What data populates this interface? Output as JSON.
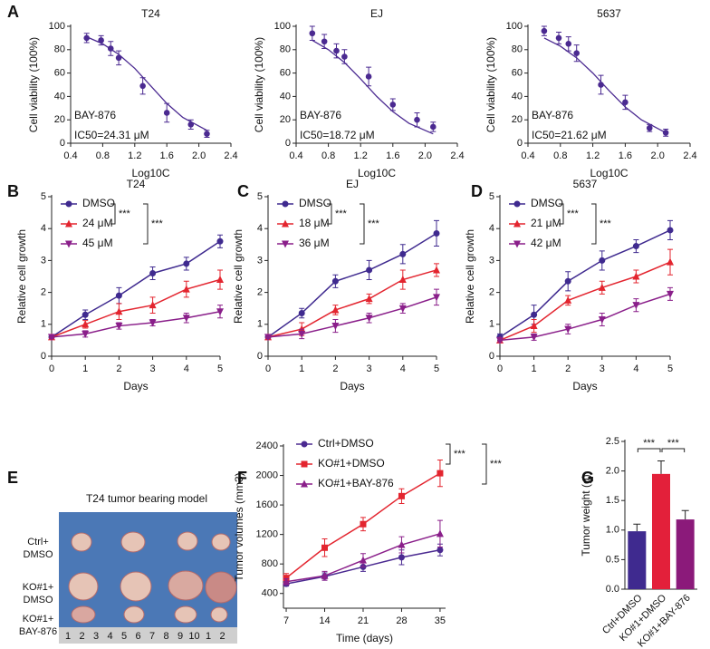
{
  "chart_data": [
    {
      "type": "scatter",
      "panel": "A",
      "title": "T24",
      "x_label": "Log10C",
      "y_label": "Cell viability (100%)",
      "annotations": [
        "BAY-876",
        "IC50=24.31 μM"
      ],
      "color": "#4b2a91",
      "x": [
        0.6,
        0.78,
        0.9,
        1.0,
        1.3,
        1.6,
        1.9,
        2.1
      ],
      "values": [
        90,
        88,
        81,
        73,
        49,
        26,
        16,
        8
      ],
      "errors": [
        4,
        4,
        6,
        6,
        7,
        8,
        4,
        3
      ],
      "fit": {
        "x": [
          0.6,
          0.8,
          1.0,
          1.2,
          1.4,
          1.6,
          1.8,
          2.1
        ],
        "values": [
          91,
          85,
          76,
          64,
          49,
          34,
          22,
          11
        ]
      },
      "xlim": [
        0.4,
        2.4
      ],
      "xticks": [
        0.4,
        0.8,
        1.2,
        1.6,
        {
          "value": 2,
          "label": "2.0"
        },
        2.4
      ],
      "ylim": [
        0,
        100
      ],
      "yticks": [
        0,
        20,
        40,
        60,
        80,
        100
      ]
    },
    {
      "type": "scatter",
      "title": "EJ",
      "x_label": "Log10C",
      "y_label": "Cell viability (100%)",
      "annotations": [
        "BAY-876",
        "IC50=18.72 μM"
      ],
      "color": "#4b2a91",
      "x": [
        0.6,
        0.75,
        0.9,
        1.0,
        1.3,
        1.6,
        1.9,
        2.1
      ],
      "values": [
        94,
        87,
        79,
        74,
        57,
        33,
        20,
        14
      ],
      "errors": [
        6,
        6,
        6,
        6,
        8,
        5,
        6,
        4
      ],
      "fit": {
        "x": [
          0.6,
          0.8,
          1.0,
          1.2,
          1.4,
          1.6,
          1.8,
          2.1
        ],
        "values": [
          88,
          80,
          69,
          55,
          40,
          27,
          17,
          8
        ]
      },
      "xlim": [
        0.4,
        2.4
      ],
      "xticks": [
        0.4,
        0.8,
        1.2,
        1.6,
        {
          "value": 2,
          "label": "2.0"
        },
        2.4
      ],
      "ylim": [
        0,
        100
      ],
      "yticks": [
        0,
        20,
        40,
        60,
        80,
        100
      ]
    },
    {
      "type": "scatter",
      "title": "5637",
      "x_label": "Log10C",
      "y_label": "Cell viability (100%)",
      "annotations": [
        "BAY-876",
        "IC50=21.62 μM"
      ],
      "color": "#4b2a91",
      "x": [
        0.6,
        0.78,
        0.9,
        1.0,
        1.3,
        1.6,
        1.9,
        2.1
      ],
      "values": [
        96,
        90,
        85,
        77,
        50,
        35,
        13,
        9
      ],
      "errors": [
        4,
        5,
        6,
        7,
        8,
        6,
        3,
        3
      ],
      "fit": {
        "x": [
          0.6,
          0.8,
          1.0,
          1.2,
          1.4,
          1.6,
          1.8,
          2.1
        ],
        "values": [
          90,
          83,
          73,
          60,
          45,
          31,
          20,
          9
        ]
      },
      "xlim": [
        0.4,
        2.4
      ],
      "xticks": [
        0.4,
        0.8,
        1.2,
        1.6,
        {
          "value": 2,
          "label": "2.0"
        },
        2.4
      ],
      "ylim": [
        0,
        100
      ],
      "yticks": [
        0,
        20,
        40,
        60,
        80,
        100
      ]
    },
    {
      "type": "line",
      "panel": "B",
      "title": "T24",
      "x_label": "Days",
      "y_label": "Relative cell growth",
      "annotations": [
        "***",
        "***"
      ],
      "x": [
        0,
        1,
        2,
        3,
        4,
        5
      ],
      "xlim": [
        0,
        5
      ],
      "xticks": [
        0,
        1,
        2,
        3,
        4,
        5
      ],
      "ylim": [
        0,
        5
      ],
      "yticks": [
        0,
        1,
        2,
        3,
        4,
        5
      ],
      "series": [
        {
          "name": "DMSO",
          "color": "#3f2a8f",
          "marker": "circle",
          "values": [
            0.6,
            1.3,
            1.9,
            2.6,
            2.9,
            3.6
          ],
          "errors": [
            0.05,
            0.15,
            0.25,
            0.2,
            0.2,
            0.2
          ]
        },
        {
          "name": "24 μM",
          "color": "#e3252f",
          "marker": "triangle-up",
          "values": [
            0.6,
            1.0,
            1.4,
            1.6,
            2.1,
            2.4
          ],
          "errors": [
            0.05,
            0.12,
            0.25,
            0.25,
            0.25,
            0.3
          ]
        },
        {
          "name": "45 μM",
          "color": "#8a1f8a",
          "marker": "triangle-down",
          "values": [
            0.6,
            0.7,
            0.95,
            1.05,
            1.2,
            1.4
          ],
          "errors": [
            0.05,
            0.1,
            0.1,
            0.1,
            0.15,
            0.2
          ]
        }
      ]
    },
    {
      "type": "line",
      "panel": "C",
      "title": "EJ",
      "x_label": "Days",
      "y_label": "Relative cell growth",
      "annotations": [
        "***",
        "***"
      ],
      "x": [
        0,
        1,
        2,
        3,
        4,
        5
      ],
      "xlim": [
        0,
        5
      ],
      "xticks": [
        0,
        1,
        2,
        3,
        4,
        5
      ],
      "ylim": [
        0,
        5
      ],
      "yticks": [
        0,
        1,
        2,
        3,
        4,
        5
      ],
      "series": [
        {
          "name": "DMSO",
          "color": "#3f2a8f",
          "marker": "circle",
          "values": [
            0.6,
            1.35,
            2.35,
            2.7,
            3.2,
            3.85
          ],
          "errors": [
            0.05,
            0.15,
            0.2,
            0.3,
            0.3,
            0.4
          ]
        },
        {
          "name": "18 μM",
          "color": "#e3252f",
          "marker": "triangle-up",
          "values": [
            0.6,
            0.85,
            1.45,
            1.8,
            2.4,
            2.7
          ],
          "errors": [
            0.05,
            0.2,
            0.15,
            0.15,
            0.3,
            0.2
          ]
        },
        {
          "name": "36 μM",
          "color": "#8a1f8a",
          "marker": "triangle-down",
          "values": [
            0.6,
            0.7,
            0.95,
            1.2,
            1.5,
            1.85
          ],
          "errors": [
            0.05,
            0.15,
            0.2,
            0.15,
            0.15,
            0.25
          ]
        }
      ]
    },
    {
      "type": "line",
      "panel": "D",
      "title": "5637",
      "x_label": "Days",
      "y_label": "Relative cell growth",
      "annotations": [
        "***",
        "***"
      ],
      "x": [
        0,
        1,
        2,
        3,
        4,
        5
      ],
      "xlim": [
        0,
        5
      ],
      "xticks": [
        0,
        1,
        2,
        3,
        4,
        5
      ],
      "ylim": [
        0,
        5
      ],
      "yticks": [
        0,
        1,
        2,
        3,
        4,
        5
      ],
      "series": [
        {
          "name": "DMSO",
          "color": "#3f2a8f",
          "marker": "circle",
          "values": [
            0.6,
            1.3,
            2.35,
            3.0,
            3.45,
            3.95
          ],
          "errors": [
            0.1,
            0.3,
            0.3,
            0.3,
            0.2,
            0.3
          ]
        },
        {
          "name": "21 μM",
          "color": "#e3252f",
          "marker": "triangle-up",
          "values": [
            0.5,
            0.95,
            1.75,
            2.15,
            2.5,
            2.95
          ],
          "errors": [
            0.05,
            0.2,
            0.15,
            0.2,
            0.2,
            0.4
          ]
        },
        {
          "name": "42 μM",
          "color": "#8a1f8a",
          "marker": "triangle-down",
          "values": [
            0.5,
            0.6,
            0.85,
            1.15,
            1.6,
            1.95
          ],
          "errors": [
            0.05,
            0.1,
            0.15,
            0.2,
            0.2,
            0.2
          ]
        }
      ]
    },
    {
      "type": "line",
      "panel": "F",
      "x_label": "Time (days)",
      "y_label": "Tumor volumes (mm3)",
      "annotations": [
        "***",
        "***"
      ],
      "x": [
        7,
        14,
        21,
        28,
        35
      ],
      "xlim": [
        6.5,
        36
      ],
      "xticks": [
        7,
        14,
        21,
        28,
        35
      ],
      "ylim": [
        200,
        2400
      ],
      "yticks": [
        400,
        800,
        1200,
        1600,
        2000,
        2400
      ],
      "series": [
        {
          "name": "Ctrl+DMSO",
          "color": "#4b2a91",
          "marker": "circle",
          "values": [
            530,
            630,
            760,
            890,
            990
          ],
          "errors": [
            30,
            50,
            60,
            100,
            80
          ]
        },
        {
          "name": "KO#1+DMSO",
          "color": "#e3252f",
          "marker": "square",
          "values": [
            610,
            1020,
            1340,
            1720,
            2030
          ],
          "errors": [
            60,
            120,
            90,
            100,
            180
          ]
        },
        {
          "name": "KO#1+BAY-876",
          "color": "#8a1f8a",
          "marker": "triangle-up",
          "values": [
            560,
            640,
            850,
            1060,
            1210
          ],
          "errors": [
            40,
            60,
            90,
            110,
            180
          ]
        }
      ]
    },
    {
      "type": "bar",
      "panel": "G",
      "y_label": "Tumor weight (g)",
      "annotations": [
        "***",
        "***"
      ],
      "categories": [
        "Ctrl+DMSO",
        "KO#1+DMSO",
        "KO#1+BAY-876"
      ],
      "values": [
        0.98,
        1.95,
        1.18
      ],
      "errors": [
        0.12,
        0.22,
        0.15
      ],
      "colors": [
        "#3f2a8f",
        "#e3203a",
        "#8b1a7a"
      ],
      "ylim": [
        0,
        2.5
      ],
      "yticks": [
        {
          "value": 0,
          "label": "0.0"
        },
        0.5,
        {
          "value": 1,
          "label": "1.0"
        },
        1.5,
        {
          "value": 2,
          "label": "2.0"
        },
        2.5
      ]
    }
  ],
  "photo": {
    "panel": "E",
    "title": "T24  tumor bearing model",
    "rows": [
      [
        "Ctrl+",
        "DMSO"
      ],
      [
        "KO#1+",
        "DMSO"
      ],
      [
        "KO#1+",
        "BAY-876"
      ]
    ],
    "ruler": [
      "1",
      "2",
      "3",
      "4",
      "5",
      "6",
      "7",
      "8",
      "9",
      "10",
      "1",
      "2"
    ]
  }
}
